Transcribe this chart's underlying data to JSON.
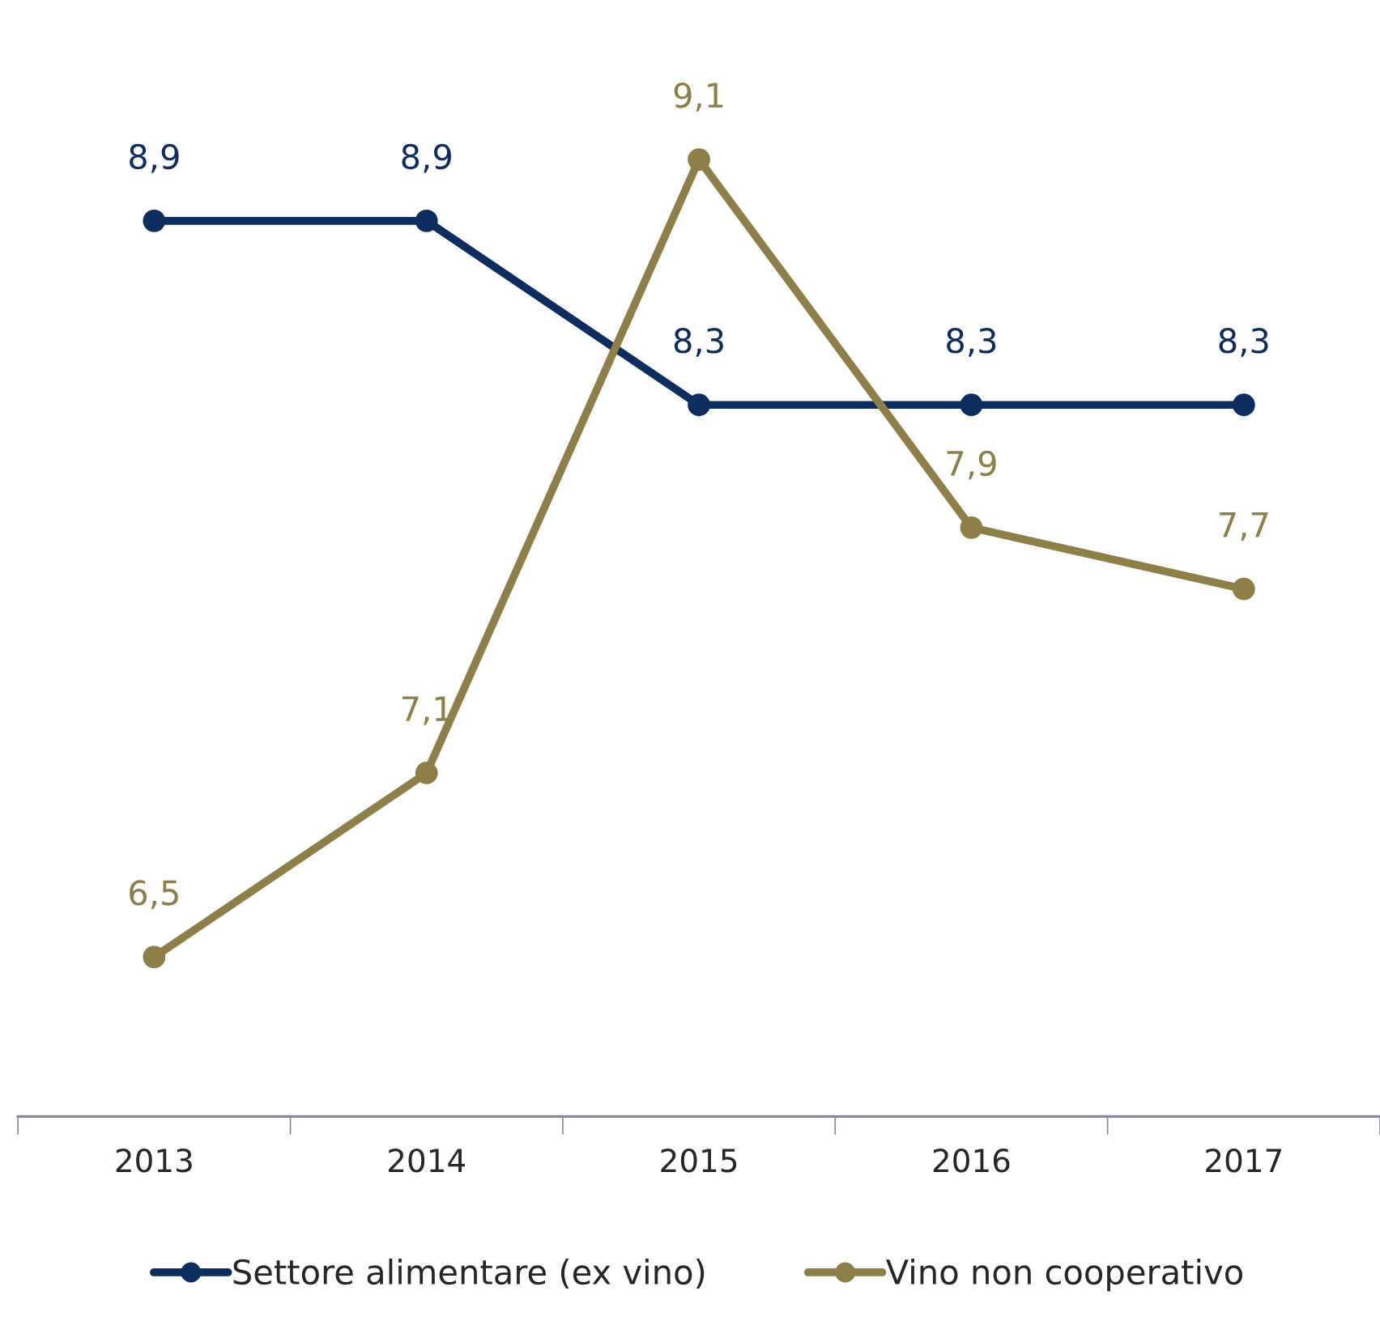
{
  "chart_data": {
    "type": "line",
    "categories": [
      "2013",
      "2014",
      "2015",
      "2016",
      "2017"
    ],
    "series": [
      {
        "name": "Settore alimentare (ex vino)",
        "color": "#0e2d5f",
        "values": [
          8.9,
          8.9,
          8.3,
          8.3,
          8.3
        ],
        "value_labels": [
          "8,9",
          "8,9",
          "8,3",
          "8,3",
          "8,3"
        ]
      },
      {
        "name": "Vino non cooperativo",
        "color": "#8d7f47",
        "values": [
          6.5,
          7.1,
          9.1,
          7.9,
          7.7
        ],
        "value_labels": [
          "6,5",
          "7,1",
          "9,1",
          "7,9",
          "7,7"
        ]
      }
    ],
    "marker": "circle",
    "line_style": "solid",
    "legend": "bottom",
    "grid": false,
    "tick_labels": "x"
  }
}
